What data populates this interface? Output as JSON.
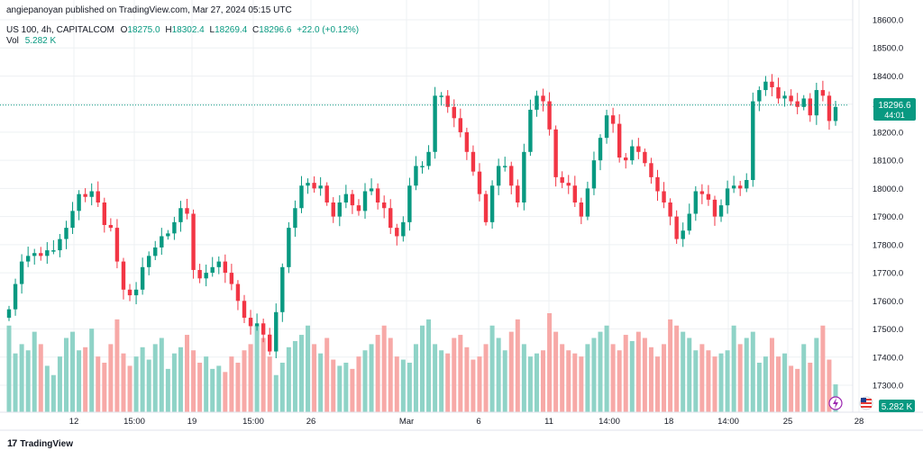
{
  "header": {
    "publisher": "angiepanoyan published on TradingView.com, Mar 27, 2024 05:15 UTC",
    "symbol": "US 100, 4h, CAPITALCOM",
    "o_label": "O",
    "o_value": "18275.0",
    "h_label": "H",
    "h_value": "18302.4",
    "l_label": "L",
    "l_value": "18269.4",
    "c_label": "C",
    "c_value": "18296.6",
    "change": "+22.0 (+0.12%)",
    "vol_label": "Vol",
    "vol_value": "5.282 K"
  },
  "price_badge": {
    "price": "18296.6",
    "countdown": "44:01"
  },
  "vol_badge": "5.282 K",
  "footer": {
    "brand": "TradingView"
  },
  "colors": {
    "up": "#089981",
    "down": "#f23645",
    "up_vol": "#8fd3c7",
    "down_vol": "#f7a9a7",
    "grid": "#eef0f3"
  },
  "chart_data": {
    "type": "candlestick",
    "ylim": [
      17200,
      18600
    ],
    "yticks": [
      "18600.0",
      "18500.0",
      "18400.0",
      "18300.0",
      "18200.0",
      "18100.0",
      "18000.0",
      "17900.0",
      "17800.0",
      "17700.0",
      "17600.0",
      "17500.0",
      "17400.0",
      "17300.0"
    ],
    "xticks": [
      "12",
      "15:00",
      "19",
      "15:00",
      "26",
      "Mar",
      "6",
      "11",
      "14:00",
      "18",
      "14:00",
      "25",
      "28"
    ],
    "last_price": 18296.6,
    "grid": true,
    "closes": [
      17570,
      17660,
      17740,
      17760,
      17770,
      17760,
      17780,
      17780,
      17820,
      17860,
      17920,
      17980,
      17970,
      17990,
      17950,
      17870,
      17860,
      17740,
      17640,
      17620,
      17640,
      17720,
      17760,
      17790,
      17830,
      17840,
      17880,
      17930,
      17910,
      17710,
      17680,
      17700,
      17720,
      17740,
      17700,
      17660,
      17600,
      17540,
      17510,
      17520,
      17480,
      17420,
      17560,
      17720,
      17860,
      17930,
      18010,
      18020,
      18000,
      18010,
      17950,
      17900,
      17950,
      17980,
      17940,
      17920,
      17990,
      18000,
      17950,
      17930,
      17860,
      17830,
      17880,
      18010,
      18080,
      18080,
      18130,
      18330,
      18330,
      18290,
      18250,
      18200,
      18130,
      18060,
      17980,
      17880,
      18010,
      18080,
      18080,
      18010,
      17950,
      18130,
      18280,
      18330,
      18310,
      18210,
      18040,
      18020,
      18010,
      17950,
      17900,
      18000,
      18100,
      18180,
      18260,
      18230,
      18110,
      18100,
      18150,
      18130,
      18090,
      18040,
      17990,
      17950,
      17900,
      17820,
      17850,
      17910,
      17990,
      17980,
      17960,
      17900,
      17940,
      18000,
      18010,
      18000,
      18030,
      18310,
      18350,
      18380,
      18360,
      18320,
      18330,
      18310,
      18290,
      18320,
      18260,
      18350,
      18330,
      18240,
      18290
    ],
    "volumes": [
      28,
      19,
      22,
      20,
      26,
      22,
      15,
      12,
      18,
      24,
      26,
      20,
      21,
      27,
      18,
      16,
      22,
      30,
      19,
      15,
      18,
      21,
      17,
      22,
      24,
      14,
      19,
      21,
      25,
      20,
      16,
      18,
      14,
      15,
      13,
      18,
      16,
      20,
      22,
      28,
      24,
      18,
      12,
      16,
      21,
      23,
      25,
      28,
      22,
      19,
      24,
      17,
      15,
      16,
      14,
      18,
      20,
      22,
      25,
      28,
      24,
      18,
      17,
      16,
      22,
      28,
      30,
      22,
      20,
      19,
      24,
      25,
      21,
      17,
      18,
      22,
      28,
      24,
      20,
      26,
      30,
      22,
      18,
      19,
      20,
      32,
      26,
      22,
      20,
      19,
      18,
      22,
      24,
      26,
      28,
      22,
      20,
      25,
      23,
      26,
      24,
      21,
      18,
      22,
      30,
      28,
      26,
      24,
      20,
      22,
      20,
      18,
      19,
      20,
      28,
      22,
      24,
      26,
      16,
      18,
      24,
      18,
      19,
      15,
      14,
      22,
      16,
      24,
      28,
      17,
      9
    ]
  }
}
